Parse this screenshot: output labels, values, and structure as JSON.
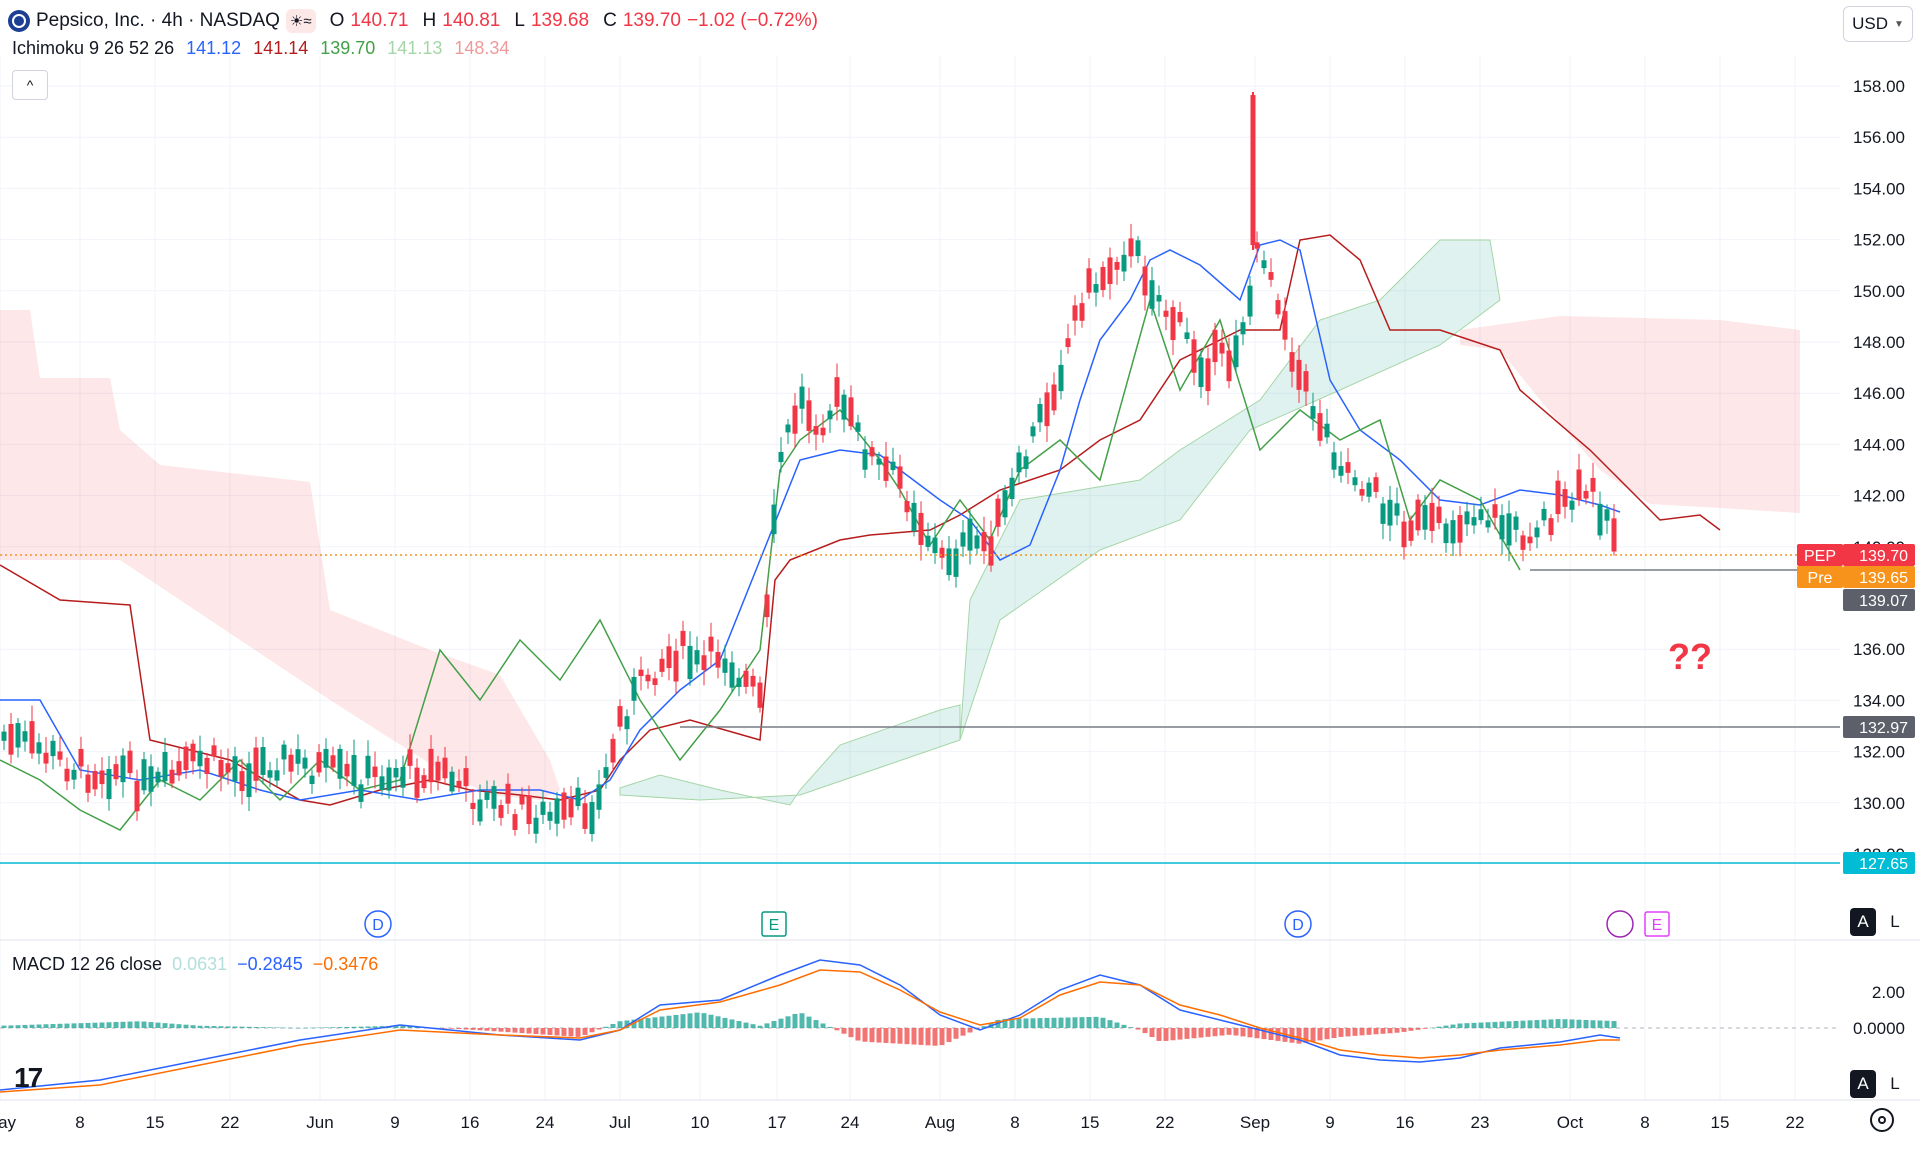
{
  "header": {
    "symbol_title": "Pepsico, Inc. · 4h · NASDAQ",
    "ohlc": {
      "o_label": "O",
      "o": "140.71",
      "h_label": "H",
      "h": "140.81",
      "l_label": "L",
      "l": "139.68",
      "c_label": "C",
      "c": "139.70",
      "change": "−1.02 (−0.72%)"
    },
    "currency": "USD"
  },
  "ichimoku": {
    "label": "Ichimoku 9 26 52 26",
    "v1": "141.12",
    "v2": "141.14",
    "v3": "139.70",
    "v4": "141.13",
    "v5": "148.34",
    "colors": {
      "conversion": "#2962ff",
      "base": "#b71c1c",
      "lagging": "#43a047",
      "span_a": "#a5d6a7",
      "span_b": "#ef9a9a"
    }
  },
  "macd": {
    "label": "MACD 12 26 close",
    "hist": "0.0631",
    "macd": "−0.2845",
    "signal": "−0.3476"
  },
  "price_axis": {
    "ticks": [
      "158.00",
      "156.00",
      "154.00",
      "152.00",
      "150.00",
      "148.00",
      "146.00",
      "144.00",
      "142.00",
      "140.00",
      "136.00",
      "134.00",
      "132.00",
      "130.00",
      "128.00"
    ]
  },
  "macd_axis": {
    "ticks": [
      "2.00",
      "0.0000"
    ]
  },
  "price_labels": [
    {
      "tag": "PEP",
      "value": "139.70",
      "color": "#f23645"
    },
    {
      "tag": "Pre",
      "value": "139.65",
      "color": "#f7931a"
    },
    {
      "tag": "",
      "value": "139.07",
      "color": "#5d606b"
    },
    {
      "tag": "",
      "value": "132.97",
      "color": "#5d606b"
    },
    {
      "tag": "",
      "value": "127.65",
      "color": "#00bcd4"
    }
  ],
  "time_axis": {
    "labels": [
      "May",
      "8",
      "15",
      "22",
      "Jun",
      "9",
      "16",
      "24",
      "Jul",
      "10",
      "17",
      "24",
      "Aug",
      "8",
      "15",
      "22",
      "Sep",
      "9",
      "16",
      "23",
      "Oct",
      "8",
      "15",
      "22"
    ]
  },
  "events": [
    {
      "letter": "D",
      "color": "#2962ff"
    },
    {
      "letter": "E",
      "color": "#089981"
    },
    {
      "letter": "D",
      "color": "#2962ff"
    },
    {
      "letter": "E",
      "color": "#e040fb"
    }
  ],
  "annotation": "??",
  "buttons": {
    "auto": "A",
    "log": "L",
    "collapse": "^"
  },
  "colors": {
    "up": "#089981",
    "down": "#f23645",
    "grid": "#f0f3fa",
    "level": "#787b86",
    "cyan": "#00bcd4"
  }
}
